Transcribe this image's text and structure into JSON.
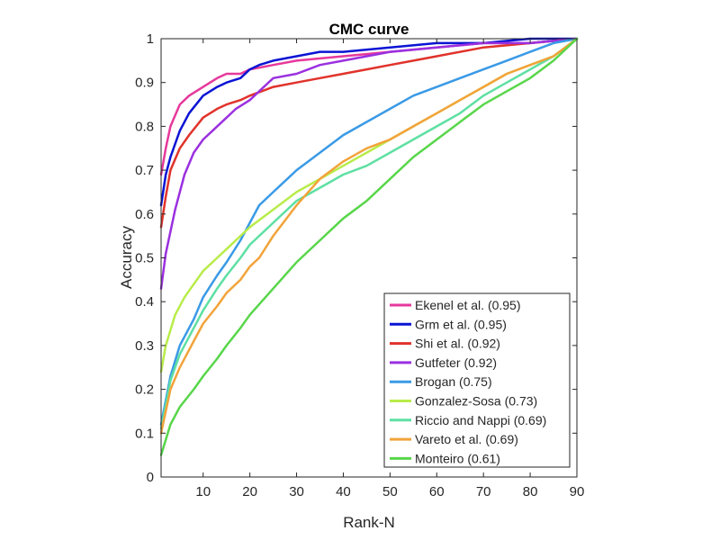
{
  "chart_data": {
    "type": "line",
    "title": "CMC curve",
    "xlabel": "Rank-N",
    "ylabel": "Accuracy",
    "xlim": [
      1,
      90
    ],
    "ylim": [
      0,
      1
    ],
    "xticks": [
      10,
      20,
      30,
      40,
      50,
      60,
      70,
      80,
      90
    ],
    "yticks": [
      0,
      0.1,
      0.2,
      0.3,
      0.4,
      0.5,
      0.6,
      0.7,
      0.8,
      0.9,
      1
    ],
    "ytick_labels": [
      "0",
      "0.1",
      "0.2",
      "0.3",
      "0.4",
      "0.5",
      "0.6",
      "0.7",
      "0.8",
      "0.9",
      "1"
    ],
    "grid": false,
    "legend_position": "bottom-right",
    "series": [
      {
        "name": "Ekenel et al. (0.95)",
        "color": "#e6399b",
        "x": [
          1,
          2,
          3,
          5,
          7,
          10,
          13,
          15,
          18,
          20,
          25,
          30,
          40,
          50,
          60,
          70,
          80,
          90
        ],
        "y": [
          0.69,
          0.75,
          0.8,
          0.85,
          0.87,
          0.89,
          0.91,
          0.92,
          0.92,
          0.93,
          0.94,
          0.95,
          0.96,
          0.97,
          0.98,
          0.99,
          0.99,
          1.0
        ]
      },
      {
        "name": "Grm et al. (0.95)",
        "color": "#0a14d4",
        "x": [
          1,
          2,
          3,
          5,
          7,
          10,
          13,
          15,
          18,
          20,
          22,
          25,
          30,
          35,
          40,
          50,
          60,
          70,
          80,
          90
        ],
        "y": [
          0.62,
          0.69,
          0.73,
          0.79,
          0.83,
          0.87,
          0.89,
          0.9,
          0.91,
          0.93,
          0.94,
          0.95,
          0.96,
          0.97,
          0.97,
          0.98,
          0.99,
          0.99,
          1.0,
          1.0
        ]
      },
      {
        "name": "Shi et al. (0.92)",
        "color": "#e0332b",
        "x": [
          1,
          2,
          3,
          5,
          7,
          10,
          13,
          15,
          18,
          20,
          25,
          30,
          35,
          40,
          45,
          50,
          55,
          60,
          70,
          80,
          90
        ],
        "y": [
          0.57,
          0.64,
          0.7,
          0.75,
          0.78,
          0.82,
          0.84,
          0.85,
          0.86,
          0.87,
          0.89,
          0.9,
          0.91,
          0.92,
          0.93,
          0.94,
          0.95,
          0.96,
          0.98,
          0.99,
          1.0
        ]
      },
      {
        "name": "Gutfeter (0.92)",
        "color": "#9b30e0",
        "x": [
          1,
          2,
          3,
          4,
          5,
          6,
          8,
          10,
          12,
          15,
          17,
          20,
          22,
          25,
          30,
          35,
          40,
          45,
          50,
          60,
          70,
          80,
          90
        ],
        "y": [
          0.43,
          0.51,
          0.56,
          0.61,
          0.65,
          0.69,
          0.74,
          0.77,
          0.79,
          0.82,
          0.84,
          0.86,
          0.88,
          0.91,
          0.92,
          0.94,
          0.95,
          0.96,
          0.97,
          0.98,
          0.99,
          0.99,
          1.0
        ]
      },
      {
        "name": "Brogan (0.75)",
        "color": "#3a9ae6",
        "x": [
          1,
          3,
          5,
          8,
          10,
          13,
          15,
          18,
          20,
          22,
          25,
          28,
          30,
          35,
          40,
          45,
          50,
          55,
          60,
          65,
          70,
          75,
          80,
          85,
          90
        ],
        "y": [
          0.12,
          0.23,
          0.3,
          0.36,
          0.41,
          0.46,
          0.49,
          0.54,
          0.58,
          0.62,
          0.65,
          0.68,
          0.7,
          0.74,
          0.78,
          0.81,
          0.84,
          0.87,
          0.89,
          0.91,
          0.93,
          0.95,
          0.97,
          0.99,
          1.0
        ]
      },
      {
        "name": "Gonzalez-Sosa (0.73)",
        "color": "#b8ec4a",
        "x": [
          1,
          2,
          4,
          6,
          8,
          10,
          13,
          15,
          18,
          20,
          25,
          30,
          35,
          40,
          45,
          50,
          55,
          60,
          65,
          70,
          75,
          80,
          85,
          90
        ],
        "y": [
          0.24,
          0.3,
          0.37,
          0.41,
          0.44,
          0.47,
          0.5,
          0.52,
          0.55,
          0.57,
          0.61,
          0.65,
          0.68,
          0.71,
          0.74,
          0.77,
          0.8,
          0.83,
          0.86,
          0.89,
          0.92,
          0.94,
          0.96,
          1.0
        ]
      },
      {
        "name": "Riccio and Nappi (0.69)",
        "color": "#5ee0a3",
        "x": [
          1,
          3,
          5,
          8,
          10,
          13,
          15,
          18,
          20,
          25,
          30,
          35,
          40,
          45,
          50,
          55,
          60,
          65,
          70,
          75,
          80,
          85,
          90
        ],
        "y": [
          0.11,
          0.22,
          0.28,
          0.34,
          0.38,
          0.43,
          0.46,
          0.5,
          0.53,
          0.58,
          0.63,
          0.66,
          0.69,
          0.71,
          0.74,
          0.77,
          0.8,
          0.83,
          0.87,
          0.9,
          0.93,
          0.96,
          1.0
        ]
      },
      {
        "name": "Vareto et al. (0.69)",
        "color": "#f2a33a",
        "x": [
          1,
          3,
          5,
          8,
          10,
          13,
          15,
          18,
          20,
          22,
          25,
          30,
          35,
          40,
          45,
          50,
          55,
          60,
          65,
          70,
          75,
          80,
          85,
          90
        ],
        "y": [
          0.1,
          0.2,
          0.25,
          0.31,
          0.35,
          0.39,
          0.42,
          0.45,
          0.48,
          0.5,
          0.55,
          0.62,
          0.68,
          0.72,
          0.75,
          0.77,
          0.8,
          0.83,
          0.86,
          0.89,
          0.92,
          0.94,
          0.96,
          1.0
        ]
      },
      {
        "name": "Monteiro (0.61)",
        "color": "#58d64a",
        "x": [
          1,
          3,
          5,
          8,
          10,
          13,
          15,
          18,
          20,
          25,
          30,
          35,
          40,
          45,
          50,
          55,
          60,
          65,
          70,
          75,
          80,
          85,
          90
        ],
        "y": [
          0.05,
          0.12,
          0.16,
          0.2,
          0.23,
          0.27,
          0.3,
          0.34,
          0.37,
          0.43,
          0.49,
          0.54,
          0.59,
          0.63,
          0.68,
          0.73,
          0.77,
          0.81,
          0.85,
          0.88,
          0.91,
          0.95,
          1.0
        ]
      }
    ]
  }
}
